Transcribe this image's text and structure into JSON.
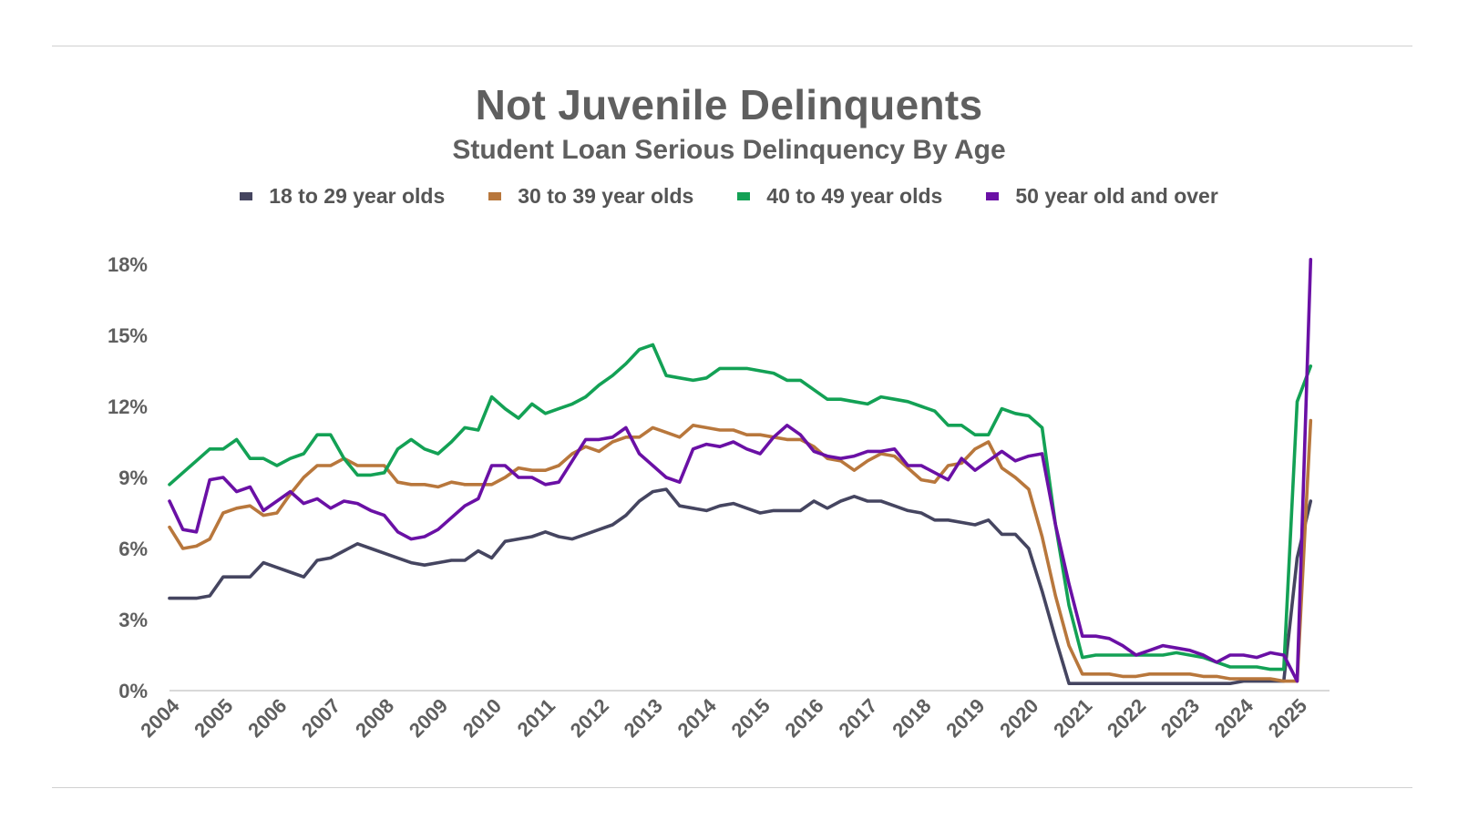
{
  "chart_data": {
    "type": "line",
    "title": "Not Juvenile Delinquents",
    "subtitle": "Student Loan Serious Delinquency By Age",
    "xlabel": "",
    "ylabel": "",
    "x_ticks": [
      "2004",
      "2005",
      "2006",
      "2007",
      "2008",
      "2009",
      "2010",
      "2011",
      "2012",
      "2013",
      "2014",
      "2015",
      "2016",
      "2017",
      "2018",
      "2019",
      "2020",
      "2021",
      "2022",
      "2023",
      "2024",
      "2025"
    ],
    "y_ticks": [
      "0%",
      "3%",
      "6%",
      "9%",
      "12%",
      "15%",
      "18%"
    ],
    "xlim": [
      2004,
      2025.5
    ],
    "ylim": [
      0,
      18
    ],
    "grid": false,
    "legend_position": "top",
    "series": [
      {
        "name": "18 to 29 year olds",
        "color": "#454560",
        "x": [
          2004.0,
          2004.25,
          2004.5,
          2004.75,
          2005.0,
          2005.25,
          2005.5,
          2005.75,
          2006.0,
          2006.25,
          2006.5,
          2006.75,
          2007.0,
          2007.25,
          2007.5,
          2007.75,
          2008.0,
          2008.25,
          2008.5,
          2008.75,
          2009.0,
          2009.25,
          2009.5,
          2009.75,
          2010.0,
          2010.25,
          2010.5,
          2010.75,
          2011.0,
          2011.25,
          2011.5,
          2011.75,
          2012.0,
          2012.25,
          2012.5,
          2012.75,
          2013.0,
          2013.25,
          2013.5,
          2013.75,
          2014.0,
          2014.25,
          2014.5,
          2014.75,
          2015.0,
          2015.25,
          2015.5,
          2015.75,
          2016.0,
          2016.25,
          2016.5,
          2016.75,
          2017.0,
          2017.25,
          2017.5,
          2017.75,
          2018.0,
          2018.25,
          2018.5,
          2018.75,
          2019.0,
          2019.25,
          2019.5,
          2019.75,
          2020.0,
          2020.25,
          2020.5,
          2020.75,
          2021.0,
          2021.25,
          2021.5,
          2021.75,
          2022.0,
          2022.25,
          2022.5,
          2022.75,
          2023.0,
          2023.25,
          2023.5,
          2023.75,
          2024.0,
          2024.25,
          2024.5,
          2024.75,
          2025.0,
          2025.25
        ],
        "values": [
          3.9,
          3.9,
          3.9,
          4.0,
          4.8,
          4.8,
          4.8,
          5.4,
          5.2,
          5.0,
          4.8,
          5.5,
          5.6,
          5.9,
          6.2,
          6.0,
          5.8,
          5.6,
          5.4,
          5.3,
          5.4,
          5.5,
          5.5,
          5.9,
          5.6,
          6.3,
          6.4,
          6.5,
          6.7,
          6.5,
          6.4,
          6.6,
          6.8,
          7.0,
          7.4,
          8.0,
          8.4,
          8.5,
          7.8,
          7.7,
          7.6,
          7.8,
          7.9,
          7.7,
          7.5,
          7.6,
          7.6,
          7.6,
          8.0,
          7.7,
          8.0,
          8.2,
          8.0,
          8.0,
          7.8,
          7.6,
          7.5,
          7.2,
          7.2,
          7.1,
          7.0,
          7.2,
          6.6,
          6.6,
          6.0,
          4.2,
          2.2,
          0.3,
          0.3,
          0.3,
          0.3,
          0.3,
          0.3,
          0.3,
          0.3,
          0.3,
          0.3,
          0.3,
          0.3,
          0.3,
          0.4,
          0.4,
          0.4,
          0.4,
          5.6,
          8.0
        ]
      },
      {
        "name": "30 to 39 year olds",
        "color": "#b8773c",
        "x": [
          2004.0,
          2004.25,
          2004.5,
          2004.75,
          2005.0,
          2005.25,
          2005.5,
          2005.75,
          2006.0,
          2006.25,
          2006.5,
          2006.75,
          2007.0,
          2007.25,
          2007.5,
          2007.75,
          2008.0,
          2008.25,
          2008.5,
          2008.75,
          2009.0,
          2009.25,
          2009.5,
          2009.75,
          2010.0,
          2010.25,
          2010.5,
          2010.75,
          2011.0,
          2011.25,
          2011.5,
          2011.75,
          2012.0,
          2012.25,
          2012.5,
          2012.75,
          2013.0,
          2013.25,
          2013.5,
          2013.75,
          2014.0,
          2014.25,
          2014.5,
          2014.75,
          2015.0,
          2015.25,
          2015.5,
          2015.75,
          2016.0,
          2016.25,
          2016.5,
          2016.75,
          2017.0,
          2017.25,
          2017.5,
          2017.75,
          2018.0,
          2018.25,
          2018.5,
          2018.75,
          2019.0,
          2019.25,
          2019.5,
          2019.75,
          2020.0,
          2020.25,
          2020.5,
          2020.75,
          2021.0,
          2021.25,
          2021.5,
          2021.75,
          2022.0,
          2022.25,
          2022.5,
          2022.75,
          2023.0,
          2023.25,
          2023.5,
          2023.75,
          2024.0,
          2024.25,
          2024.5,
          2024.75,
          2025.0,
          2025.25
        ],
        "values": [
          6.9,
          6.0,
          6.1,
          6.4,
          7.5,
          7.7,
          7.8,
          7.4,
          7.5,
          8.3,
          9.0,
          9.5,
          9.5,
          9.8,
          9.5,
          9.5,
          9.5,
          8.8,
          8.7,
          8.7,
          8.6,
          8.8,
          8.7,
          8.7,
          8.7,
          9.0,
          9.4,
          9.3,
          9.3,
          9.5,
          10.0,
          10.3,
          10.1,
          10.5,
          10.7,
          10.7,
          11.1,
          10.9,
          10.7,
          11.2,
          11.1,
          11.0,
          11.0,
          10.8,
          10.8,
          10.7,
          10.6,
          10.6,
          10.3,
          9.8,
          9.7,
          9.3,
          9.7,
          10.0,
          9.9,
          9.4,
          8.9,
          8.8,
          9.5,
          9.6,
          10.2,
          10.5,
          9.4,
          9.0,
          8.5,
          6.5,
          4.0,
          1.9,
          0.7,
          0.7,
          0.7,
          0.6,
          0.6,
          0.7,
          0.7,
          0.7,
          0.7,
          0.6,
          0.6,
          0.5,
          0.5,
          0.5,
          0.5,
          0.4,
          0.4,
          11.4
        ]
      },
      {
        "name": "40 to 49 year olds",
        "color": "#13a155",
        "x": [
          2004.0,
          2004.25,
          2004.5,
          2004.75,
          2005.0,
          2005.25,
          2005.5,
          2005.75,
          2006.0,
          2006.25,
          2006.5,
          2006.75,
          2007.0,
          2007.25,
          2007.5,
          2007.75,
          2008.0,
          2008.25,
          2008.5,
          2008.75,
          2009.0,
          2009.25,
          2009.5,
          2009.75,
          2010.0,
          2010.25,
          2010.5,
          2010.75,
          2011.0,
          2011.25,
          2011.5,
          2011.75,
          2012.0,
          2012.25,
          2012.5,
          2012.75,
          2013.0,
          2013.25,
          2013.5,
          2013.75,
          2014.0,
          2014.25,
          2014.5,
          2014.75,
          2015.0,
          2015.25,
          2015.5,
          2015.75,
          2016.0,
          2016.25,
          2016.5,
          2016.75,
          2017.0,
          2017.25,
          2017.5,
          2017.75,
          2018.0,
          2018.25,
          2018.5,
          2018.75,
          2019.0,
          2019.25,
          2019.5,
          2019.75,
          2020.0,
          2020.25,
          2020.5,
          2020.75,
          2021.0,
          2021.25,
          2021.5,
          2021.75,
          2022.0,
          2022.25,
          2022.5,
          2022.75,
          2023.0,
          2023.25,
          2023.5,
          2023.75,
          2024.0,
          2024.25,
          2024.5,
          2024.75,
          2025.0,
          2025.25
        ],
        "values": [
          8.7,
          9.2,
          9.7,
          10.2,
          10.2,
          10.6,
          9.8,
          9.8,
          9.5,
          9.8,
          10.0,
          10.8,
          10.8,
          9.8,
          9.1,
          9.1,
          9.2,
          10.2,
          10.6,
          10.2,
          10.0,
          10.5,
          11.1,
          11.0,
          12.4,
          11.9,
          11.5,
          12.1,
          11.7,
          11.9,
          12.1,
          12.4,
          12.9,
          13.3,
          13.8,
          14.4,
          14.6,
          13.3,
          13.2,
          13.1,
          13.2,
          13.6,
          13.6,
          13.6,
          13.5,
          13.4,
          13.1,
          13.1,
          12.7,
          12.3,
          12.3,
          12.2,
          12.1,
          12.4,
          12.3,
          12.2,
          12.0,
          11.8,
          11.2,
          11.2,
          10.8,
          10.8,
          11.9,
          11.7,
          11.6,
          11.1,
          7.0,
          3.6,
          1.4,
          1.5,
          1.5,
          1.5,
          1.5,
          1.5,
          1.5,
          1.6,
          1.5,
          1.4,
          1.2,
          1.0,
          1.0,
          1.0,
          0.9,
          0.9,
          12.2,
          13.7
        ]
      },
      {
        "name": "50 year old and over",
        "color": "#6a10a5",
        "x": [
          2004.0,
          2004.25,
          2004.5,
          2004.75,
          2005.0,
          2005.25,
          2005.5,
          2005.75,
          2006.0,
          2006.25,
          2006.5,
          2006.75,
          2007.0,
          2007.25,
          2007.5,
          2007.75,
          2008.0,
          2008.25,
          2008.5,
          2008.75,
          2009.0,
          2009.25,
          2009.5,
          2009.75,
          2010.0,
          2010.25,
          2010.5,
          2010.75,
          2011.0,
          2011.25,
          2011.5,
          2011.75,
          2012.0,
          2012.25,
          2012.5,
          2012.75,
          2013.0,
          2013.25,
          2013.5,
          2013.75,
          2014.0,
          2014.25,
          2014.5,
          2014.75,
          2015.0,
          2015.25,
          2015.5,
          2015.75,
          2016.0,
          2016.25,
          2016.5,
          2016.75,
          2017.0,
          2017.25,
          2017.5,
          2017.75,
          2018.0,
          2018.25,
          2018.5,
          2018.75,
          2019.0,
          2019.25,
          2019.5,
          2019.75,
          2020.0,
          2020.25,
          2020.5,
          2020.75,
          2021.0,
          2021.25,
          2021.5,
          2021.75,
          2022.0,
          2022.25,
          2022.5,
          2022.75,
          2023.0,
          2023.25,
          2023.5,
          2023.75,
          2024.0,
          2024.25,
          2024.5,
          2024.75,
          2025.0,
          2025.25
        ],
        "values": [
          8.0,
          6.8,
          6.7,
          8.9,
          9.0,
          8.4,
          8.6,
          7.6,
          8.0,
          8.4,
          7.9,
          8.1,
          7.7,
          8.0,
          7.9,
          7.6,
          7.4,
          6.7,
          6.4,
          6.5,
          6.8,
          7.3,
          7.8,
          8.1,
          9.5,
          9.5,
          9.0,
          9.0,
          8.7,
          8.8,
          9.7,
          10.6,
          10.6,
          10.7,
          11.1,
          10.0,
          9.5,
          9.0,
          8.8,
          10.2,
          10.4,
          10.3,
          10.5,
          10.2,
          10.0,
          10.7,
          11.2,
          10.8,
          10.1,
          9.9,
          9.8,
          9.9,
          10.1,
          10.1,
          10.2,
          9.5,
          9.5,
          9.2,
          8.9,
          9.8,
          9.3,
          9.7,
          10.1,
          9.7,
          9.9,
          10.0,
          7.0,
          4.5,
          2.3,
          2.3,
          2.2,
          1.9,
          1.5,
          1.7,
          1.9,
          1.8,
          1.7,
          1.5,
          1.2,
          1.5,
          1.5,
          1.4,
          1.6,
          1.5,
          0.4,
          18.2
        ]
      }
    ]
  }
}
